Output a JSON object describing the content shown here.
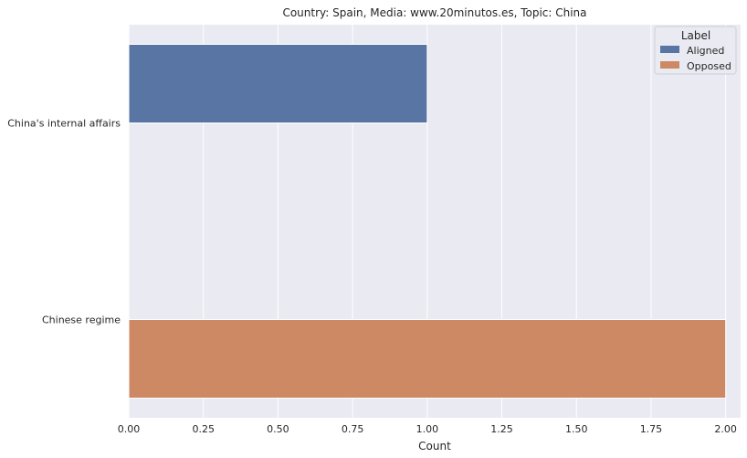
{
  "chart_data": {
    "type": "bar",
    "orientation": "horizontal",
    "title": "Country: Spain, Media: www.20minutos.es, Topic: China",
    "xlabel": "Count",
    "ylabel": "",
    "categories": [
      "China's internal affairs",
      "Chinese regime"
    ],
    "series": [
      {
        "name": "Aligned",
        "color": "#5875a4",
        "values": [
          1,
          0
        ]
      },
      {
        "name": "Opposed",
        "color": "#cc8963",
        "values": [
          0,
          2
        ]
      }
    ],
    "xlim": [
      0,
      2.05
    ],
    "xticks": [
      "0.00",
      "0.25",
      "0.50",
      "0.75",
      "1.00",
      "1.25",
      "1.50",
      "1.75",
      "2.00"
    ],
    "grid": true,
    "legend": {
      "title": "Label",
      "position": "top-right"
    },
    "colors": {
      "background": "#eaeaf2",
      "grid": "#ffffff"
    }
  }
}
